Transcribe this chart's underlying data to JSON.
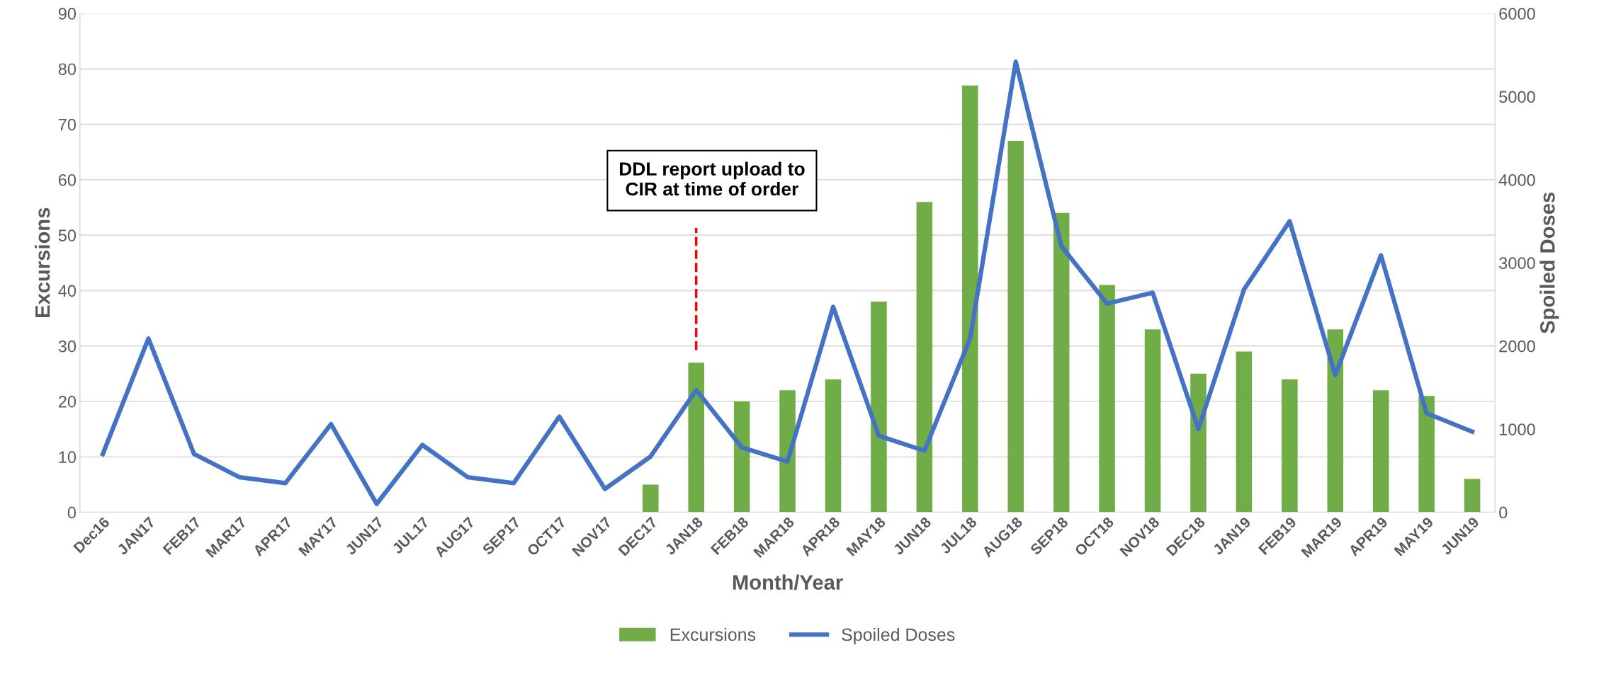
{
  "chart_data": {
    "type": "bar",
    "xlabel": "Month/Year",
    "ylabel": "Excursions",
    "y2label": "Spoiled Doses",
    "categories": [
      "Dec16",
      "JAN17",
      "FEB17",
      "MAR17",
      "APR17",
      "MAY17",
      "JUN17",
      "JUL17",
      "AUG17",
      "SEP17",
      "OCT17",
      "NOV17",
      "DEC17",
      "JAN18",
      "FEB18",
      "MAR18",
      "APR18",
      "MAY18",
      "JUN18",
      "JUL18",
      "AUG18",
      "SEP18",
      "OCT18",
      "NOV18",
      "DEC18",
      "JAN19",
      "FEB19",
      "MAR19",
      "APR19",
      "MAY19",
      "JUN19"
    ],
    "series": [
      {
        "name": "Excursions",
        "color": "#70ad47",
        "values": [
          null,
          null,
          null,
          null,
          null,
          null,
          null,
          null,
          null,
          null,
          null,
          null,
          5,
          27,
          20,
          22,
          24,
          38,
          56,
          77,
          67,
          54,
          41,
          33,
          25,
          29,
          24,
          33,
          22,
          21,
          6
        ]
      },
      {
        "name": "Spoiled Doses",
        "type": "line",
        "axis": "y2",
        "color": "#4472c4",
        "values": [
          700,
          2090,
          700,
          420,
          350,
          1060,
          100,
          810,
          420,
          350,
          1150,
          280,
          670,
          1470,
          780,
          610,
          2470,
          920,
          740,
          2090,
          5420,
          3200,
          2510,
          2640,
          1000,
          2680,
          3500,
          1650,
          3090,
          1190,
          970
        ]
      }
    ],
    "ylim": [
      0,
      90
    ],
    "yticks": [
      0,
      10,
      20,
      30,
      40,
      50,
      60,
      70,
      80,
      90
    ],
    "y2lim": [
      0,
      6000
    ],
    "y2ticks": [
      0,
      1000,
      2000,
      3000,
      4000,
      5000,
      6000
    ],
    "ref_lines": [
      {
        "axis": "x",
        "value": "JAN18",
        "label": "DDL report upload to\nCIR at time of order",
        "color": "#ff0000",
        "line_style": "dashed"
      }
    ],
    "grid": "y",
    "legend": "bottom",
    "marker": "none",
    "line_style": "solid"
  }
}
